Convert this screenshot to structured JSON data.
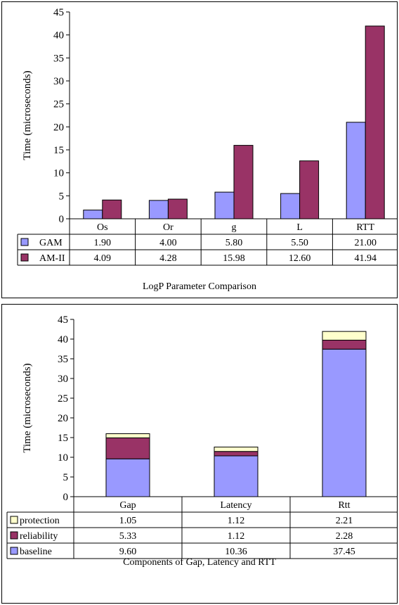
{
  "chart_data": [
    {
      "type": "bar",
      "title": "LogP Parameter Comparison",
      "ylabel": "Time (microseconds)",
      "ylim": [
        0,
        45
      ],
      "yticks": [
        0,
        5,
        10,
        15,
        20,
        25,
        30,
        35,
        40,
        45
      ],
      "categories": [
        "Os",
        "Or",
        "g",
        "L",
        "RTT"
      ],
      "series": [
        {
          "name": "GAM",
          "color": "#9999ff",
          "values": [
            1.9,
            4.0,
            5.8,
            5.5,
            21.0
          ],
          "labels": [
            "1.90",
            "4.00",
            "5.80",
            "5.50",
            "21.00"
          ]
        },
        {
          "name": "AM-II",
          "color": "#993366",
          "values": [
            4.09,
            4.28,
            15.98,
            12.6,
            41.94
          ],
          "labels": [
            "4.09",
            "4.28",
            "15.98",
            "12.60",
            "41.94"
          ]
        }
      ],
      "grid": false,
      "legend": "data-table"
    },
    {
      "type": "bar",
      "stacked": true,
      "title": "Components of Gap, Latency and RTT",
      "ylabel": "Time (microseconds)",
      "ylim": [
        0,
        45
      ],
      "yticks": [
        0,
        5,
        10,
        15,
        20,
        25,
        30,
        35,
        40,
        45
      ],
      "categories": [
        "Gap",
        "Latency",
        "Rtt"
      ],
      "series": [
        {
          "name": "protection",
          "color": "#ffffcc",
          "values": [
            1.05,
            1.12,
            2.21
          ],
          "labels": [
            "1.05",
            "1.12",
            "2.21"
          ]
        },
        {
          "name": "reliability",
          "color": "#993366",
          "values": [
            5.33,
            1.12,
            2.28
          ],
          "labels": [
            "5.33",
            "1.12",
            "2.28"
          ]
        },
        {
          "name": "baseline",
          "color": "#9999ff",
          "values": [
            9.6,
            10.36,
            37.45
          ],
          "labels": [
            "9.60",
            "10.36",
            "37.45"
          ]
        }
      ],
      "stack_order_bottom_to_top": [
        "baseline",
        "reliability",
        "protection"
      ],
      "grid": false,
      "legend": "data-table"
    }
  ]
}
